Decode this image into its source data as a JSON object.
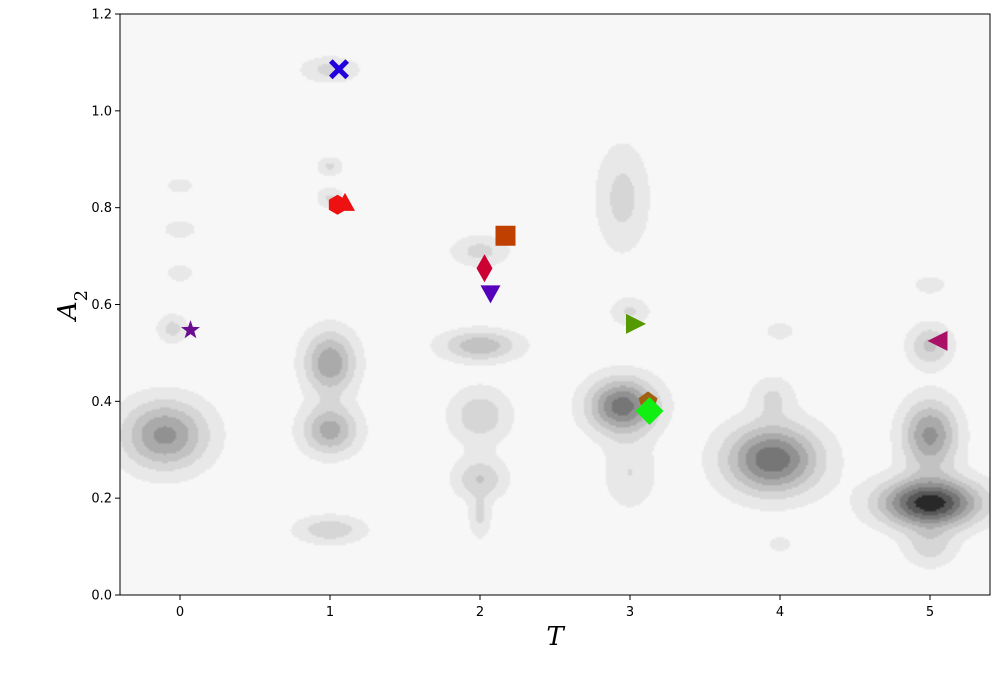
{
  "chart_data": {
    "type": "scatter",
    "title": "",
    "xlabel": "T",
    "ylabel": "A",
    "ylabel_subscript": "2",
    "xlim": [
      -0.4,
      5.4
    ],
    "ylim": [
      0.0,
      1.2
    ],
    "xticks": [
      0,
      1,
      2,
      3,
      4,
      5
    ],
    "xtick_labels": [
      "0",
      "1",
      "2",
      "3",
      "4",
      "5"
    ],
    "yticks": [
      0.0,
      0.2,
      0.4,
      0.6,
      0.8,
      1.0,
      1.2
    ],
    "ytick_labels": [
      "0.0",
      "0.2",
      "0.4",
      "0.6",
      "0.8",
      "1.0",
      "1.2"
    ],
    "grid": false,
    "legend": "none",
    "background_density": {
      "type": "filled-contour",
      "colormap": "greys",
      "blobs": [
        {
          "x": -0.1,
          "y": 0.33,
          "sx": 0.2,
          "sy": 0.05,
          "w": 0.6
        },
        {
          "x": -0.05,
          "y": 0.55,
          "sx": 0.07,
          "sy": 0.02,
          "w": 0.25
        },
        {
          "x": 0.0,
          "y": 0.665,
          "sx": 0.06,
          "sy": 0.012,
          "w": 0.2
        },
        {
          "x": 0.0,
          "y": 0.755,
          "sx": 0.07,
          "sy": 0.012,
          "w": 0.2
        },
        {
          "x": 0.0,
          "y": 0.845,
          "sx": 0.06,
          "sy": 0.01,
          "w": 0.2
        },
        {
          "x": 1.0,
          "y": 1.085,
          "sx": 0.13,
          "sy": 0.018,
          "w": 0.25
        },
        {
          "x": 1.0,
          "y": 0.885,
          "sx": 0.06,
          "sy": 0.014,
          "w": 0.22
        },
        {
          "x": 1.0,
          "y": 0.82,
          "sx": 0.06,
          "sy": 0.015,
          "w": 0.22
        },
        {
          "x": 1.0,
          "y": 0.48,
          "sx": 0.12,
          "sy": 0.045,
          "w": 0.55
        },
        {
          "x": 1.0,
          "y": 0.34,
          "sx": 0.13,
          "sy": 0.035,
          "w": 0.5
        },
        {
          "x": 1.0,
          "y": 0.135,
          "sx": 0.16,
          "sy": 0.02,
          "w": 0.3
        },
        {
          "x": 2.0,
          "y": 0.71,
          "sx": 0.13,
          "sy": 0.022,
          "w": 0.25
        },
        {
          "x": 2.0,
          "y": 0.515,
          "sx": 0.18,
          "sy": 0.022,
          "w": 0.42
        },
        {
          "x": 2.0,
          "y": 0.37,
          "sx": 0.14,
          "sy": 0.04,
          "w": 0.3
        },
        {
          "x": 2.0,
          "y": 0.24,
          "sx": 0.12,
          "sy": 0.03,
          "w": 0.32
        },
        {
          "x": 2.0,
          "y": 0.16,
          "sx": 0.05,
          "sy": 0.03,
          "w": 0.22
        },
        {
          "x": 2.95,
          "y": 0.82,
          "sx": 0.12,
          "sy": 0.075,
          "w": 0.25
        },
        {
          "x": 3.0,
          "y": 0.585,
          "sx": 0.09,
          "sy": 0.02,
          "w": 0.22
        },
        {
          "x": 2.95,
          "y": 0.39,
          "sx": 0.16,
          "sy": 0.04,
          "w": 0.75
        },
        {
          "x": 3.0,
          "y": 0.25,
          "sx": 0.12,
          "sy": 0.05,
          "w": 0.2
        },
        {
          "x": 3.95,
          "y": 0.28,
          "sx": 0.22,
          "sy": 0.05,
          "w": 0.78
        },
        {
          "x": 3.95,
          "y": 0.41,
          "sx": 0.1,
          "sy": 0.03,
          "w": 0.2
        },
        {
          "x": 4.0,
          "y": 0.545,
          "sx": 0.06,
          "sy": 0.012,
          "w": 0.2
        },
        {
          "x": 4.0,
          "y": 0.105,
          "sx": 0.05,
          "sy": 0.01,
          "w": 0.2
        },
        {
          "x": 5.0,
          "y": 0.19,
          "sx": 0.23,
          "sy": 0.035,
          "w": 1.0
        },
        {
          "x": 5.0,
          "y": 0.33,
          "sx": 0.13,
          "sy": 0.05,
          "w": 0.6
        },
        {
          "x": 5.0,
          "y": 0.515,
          "sx": 0.1,
          "sy": 0.03,
          "w": 0.35
        },
        {
          "x": 5.0,
          "y": 0.64,
          "sx": 0.07,
          "sy": 0.012,
          "w": 0.2
        },
        {
          "x": 5.0,
          "y": 0.1,
          "sx": 0.12,
          "sy": 0.03,
          "w": 0.25
        }
      ]
    },
    "points": [
      {
        "marker": "star",
        "x": 0.07,
        "y": 0.547,
        "color": "#6a0d91"
      },
      {
        "marker": "x",
        "x": 1.06,
        "y": 1.086,
        "color": "#2200dd"
      },
      {
        "marker": "hexagon",
        "x": 1.05,
        "y": 0.806,
        "color": "#ee1111"
      },
      {
        "marker": "triangle-up",
        "x": 1.1,
        "y": 0.81,
        "color": "#ee1111"
      },
      {
        "marker": "square",
        "x": 2.17,
        "y": 0.742,
        "color": "#c04000"
      },
      {
        "marker": "thin-diamond",
        "x": 2.03,
        "y": 0.675,
        "color": "#cc0033"
      },
      {
        "marker": "triangle-down",
        "x": 2.07,
        "y": 0.623,
        "color": "#5500bb"
      },
      {
        "marker": "triangle-right",
        "x": 3.04,
        "y": 0.56,
        "color": "#559900"
      },
      {
        "marker": "pentagon",
        "x": 3.12,
        "y": 0.4,
        "color": "#a06010"
      },
      {
        "marker": "diamond",
        "x": 3.13,
        "y": 0.38,
        "color": "#11ee11"
      },
      {
        "marker": "triangle-left",
        "x": 5.05,
        "y": 0.525,
        "color": "#aa1166"
      }
    ]
  }
}
